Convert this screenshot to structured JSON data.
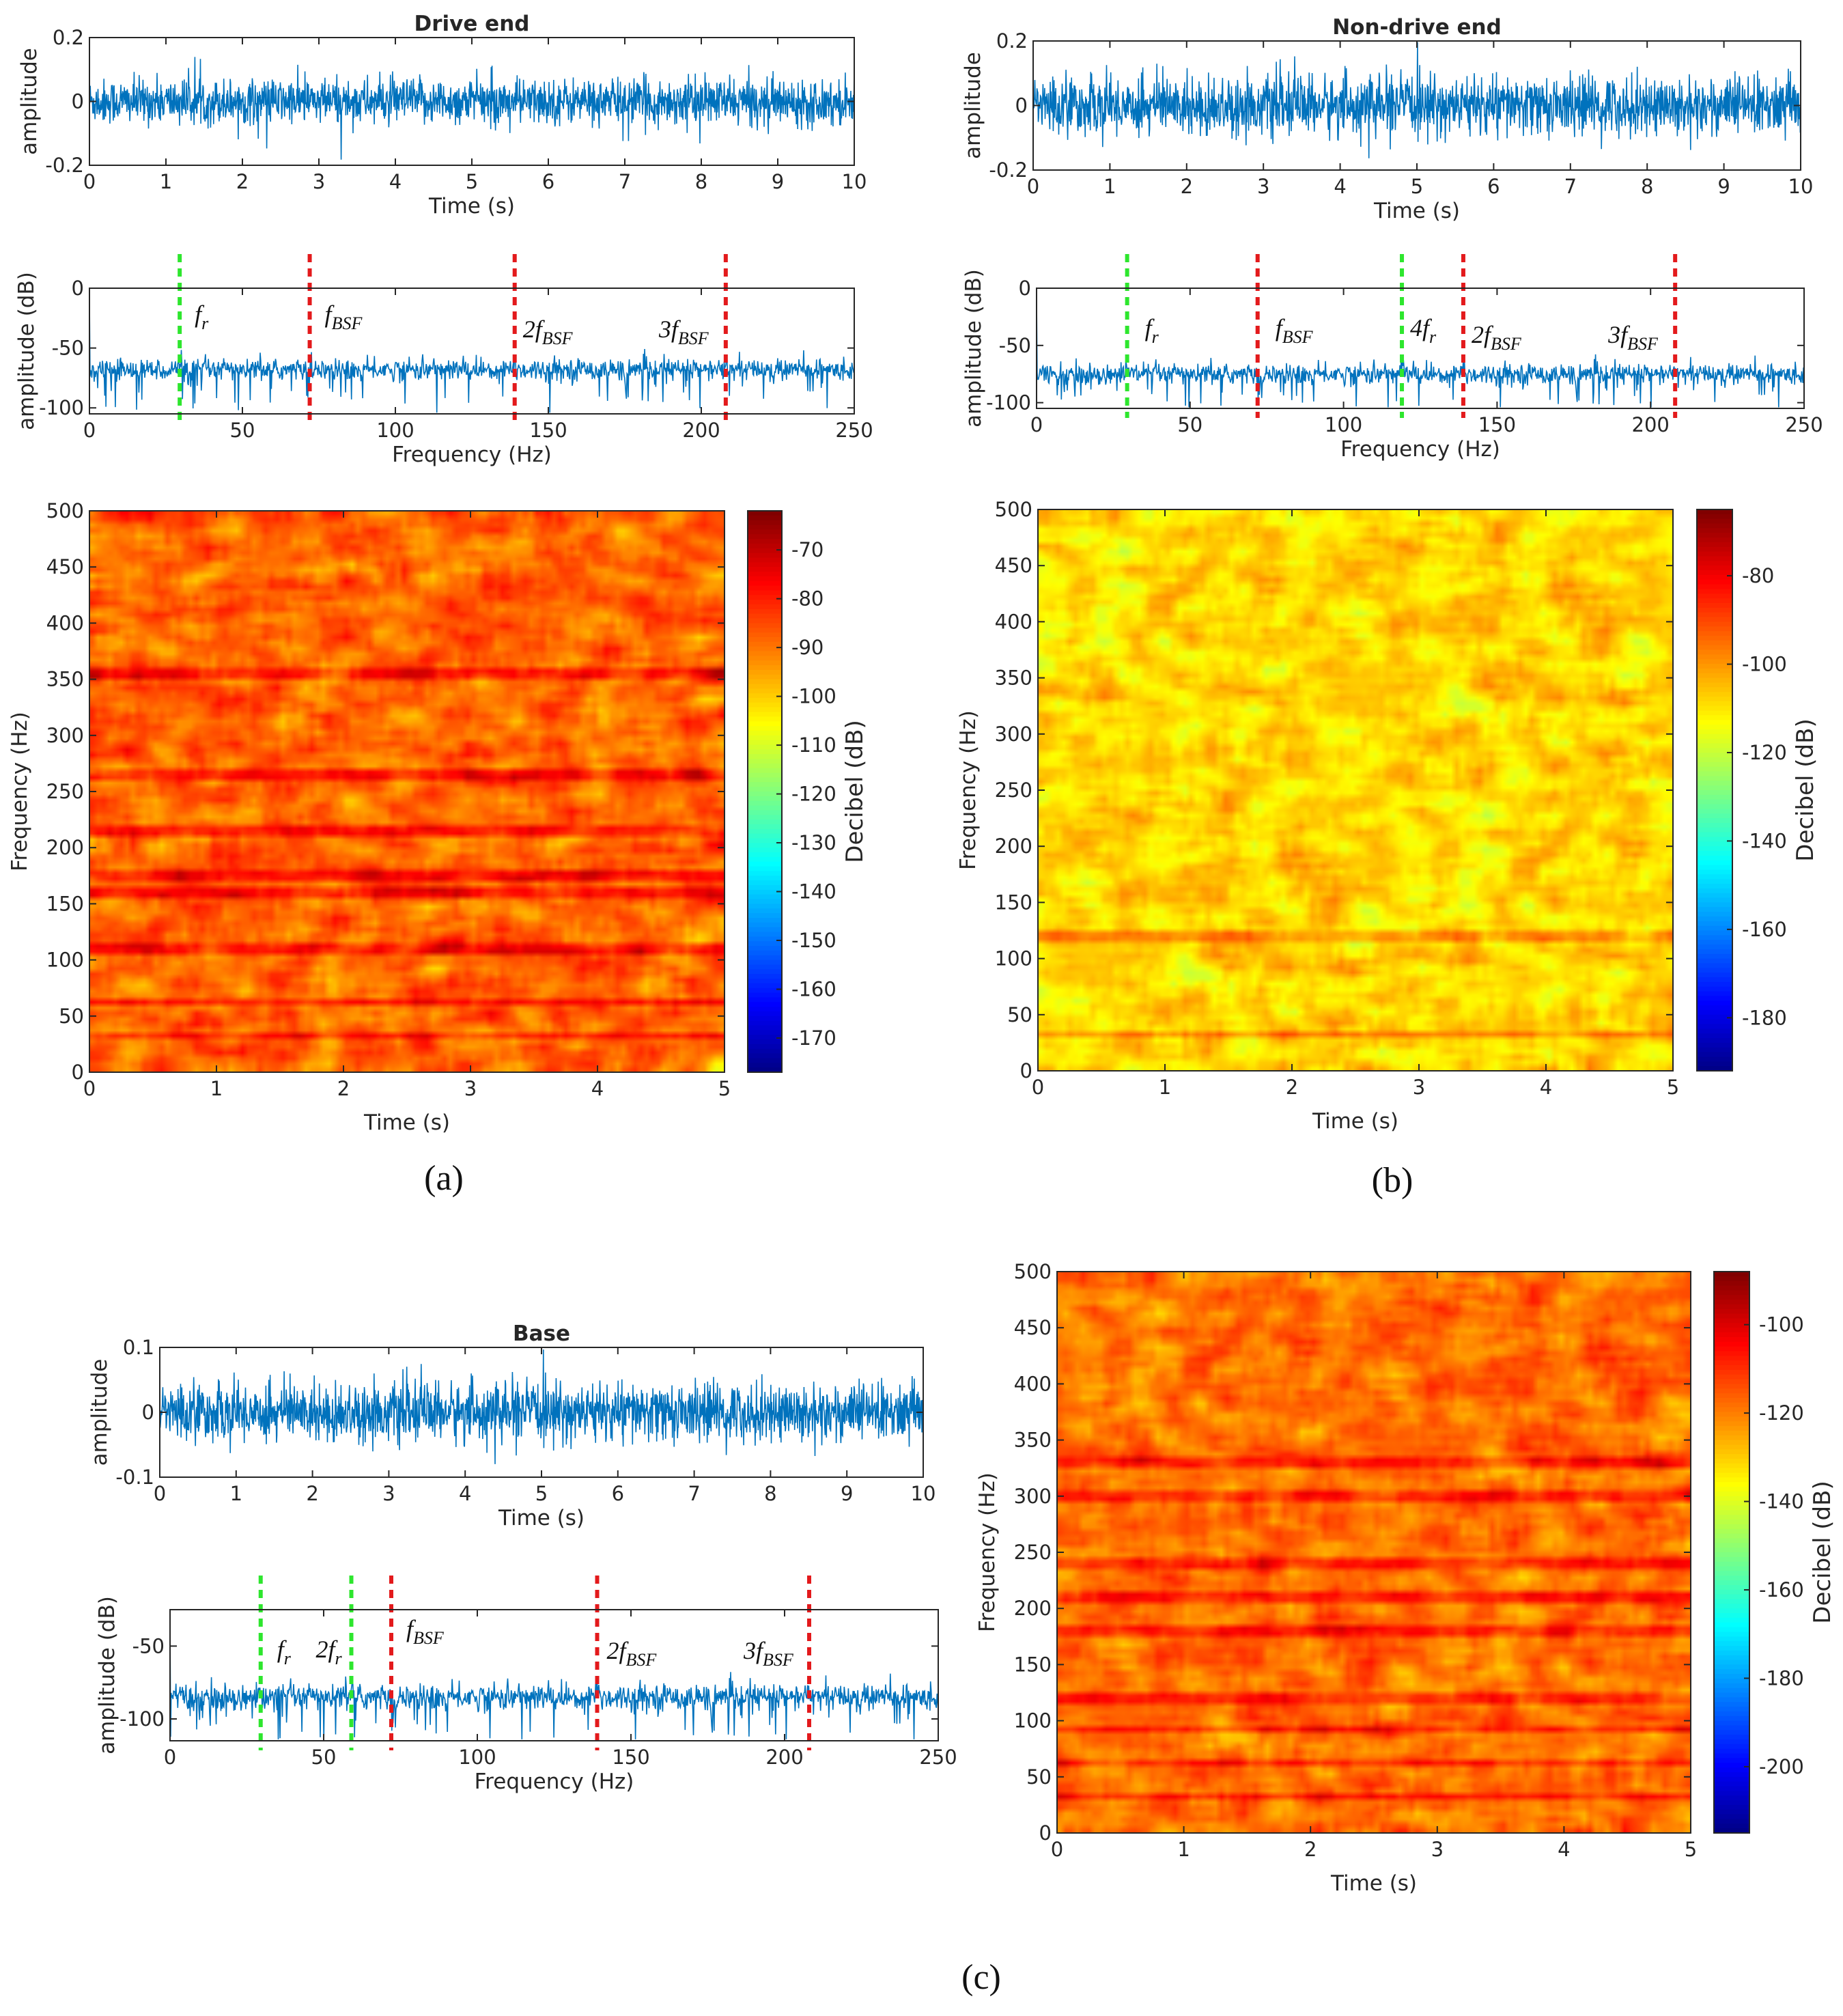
{
  "panels": [
    {
      "id": "a",
      "caption": "(a)",
      "time_plot": {
        "title": "Drive end",
        "xlabel": "Time (s)",
        "ylabel": "amplitude",
        "xlim": [
          0,
          10
        ],
        "ylim": [
          -0.2,
          0.2
        ],
        "xticks": [
          "0",
          "1",
          "2",
          "3",
          "4",
          "5",
          "6",
          "7",
          "8",
          "9",
          "10"
        ],
        "yticks": [
          "0.2",
          "0",
          "-0.2"
        ],
        "signal_rms": 0.035
      },
      "spectrum_plot": {
        "xlabel": "Frequency (Hz)",
        "ylabel": "amplitude (dB)",
        "xlim": [
          0,
          250
        ],
        "ylim": [
          -105,
          0
        ],
        "xticks": [
          "0",
          "50",
          "100",
          "150",
          "200",
          "250"
        ],
        "yticks": [
          "0",
          "-50",
          "-100"
        ],
        "baseline_db": -68,
        "markers": [
          {
            "freq": 29.5,
            "color": "green",
            "label": "f",
            "sub": "r"
          },
          {
            "freq": 72,
            "color": "red",
            "label": "f",
            "sub": "BSF"
          },
          {
            "freq": 139,
            "color": "red",
            "label": "2f",
            "sub": "BSF"
          },
          {
            "freq": 208,
            "color": "red",
            "label": "3f",
            "sub": "BSF"
          }
        ]
      },
      "spectrogram": {
        "xlabel": "Time (s)",
        "ylabel": "Frequency (Hz)",
        "xlim": [
          0,
          5
        ],
        "ylim": [
          0,
          500
        ],
        "xticks": [
          "0",
          "1",
          "2",
          "3",
          "4",
          "5"
        ],
        "yticks": [
          "0",
          "50",
          "100",
          "150",
          "200",
          "250",
          "300",
          "350",
          "400",
          "450",
          "500"
        ],
        "colorbar_label": "Decibel (dB)",
        "colorbar_ticks": [
          "-70",
          "-80",
          "-90",
          "-100",
          "-110",
          "-120",
          "-130",
          "-140",
          "-150",
          "-160",
          "-170"
        ],
        "clim": [
          -177,
          -62
        ],
        "background_db": -88,
        "bright_lines_hz": [
          30,
          60,
          110,
          160,
          175,
          215,
          265,
          355
        ]
      }
    },
    {
      "id": "b",
      "caption": "(b)",
      "time_plot": {
        "title": "Non-drive end",
        "xlabel": "Time (s)",
        "ylabel": "amplitude",
        "xlim": [
          0,
          10
        ],
        "ylim": [
          -0.2,
          0.2
        ],
        "xticks": [
          "0",
          "1",
          "2",
          "3",
          "4",
          "5",
          "6",
          "7",
          "8",
          "9",
          "10"
        ],
        "yticks": [
          "0.2",
          "0",
          "-0.2"
        ],
        "signal_rms": 0.045
      },
      "spectrum_plot": {
        "xlabel": "Frequency (Hz)",
        "ylabel": "amplitude (dB)",
        "xlim": [
          0,
          250
        ],
        "ylim": [
          -105,
          0
        ],
        "xticks": [
          "0",
          "50",
          "100",
          "150",
          "200",
          "250"
        ],
        "yticks": [
          "0",
          "-50",
          "-100"
        ],
        "baseline_db": -75,
        "markers": [
          {
            "freq": 29.5,
            "color": "green",
            "label": "f",
            "sub": "r"
          },
          {
            "freq": 72,
            "color": "red",
            "label": "f",
            "sub": "BSF"
          },
          {
            "freq": 119,
            "color": "green",
            "label": "4f",
            "sub": "r"
          },
          {
            "freq": 139,
            "color": "red",
            "label": "2f",
            "sub": "BSF"
          },
          {
            "freq": 208,
            "color": "red",
            "label": "3f",
            "sub": "BSF"
          }
        ]
      },
      "spectrogram": {
        "xlabel": "Time (s)",
        "ylabel": "Frequency (Hz)",
        "xlim": [
          0,
          5
        ],
        "ylim": [
          0,
          500
        ],
        "xticks": [
          "0",
          "1",
          "2",
          "3",
          "4",
          "5"
        ],
        "yticks": [
          "0",
          "50",
          "100",
          "150",
          "200",
          "250",
          "300",
          "350",
          "400",
          "450",
          "500"
        ],
        "colorbar_label": "Decibel (dB)",
        "colorbar_ticks": [
          "-80",
          "-100",
          "-120",
          "-140",
          "-160",
          "-180"
        ],
        "clim": [
          -192,
          -65
        ],
        "background_db": -108,
        "bright_lines_hz": [
          30,
          120
        ]
      }
    },
    {
      "id": "c",
      "caption": "(c)",
      "time_plot": {
        "title": "Base",
        "xlabel": "Time (s)",
        "ylabel": "amplitude",
        "xlim": [
          0,
          10
        ],
        "ylim": [
          -0.1,
          0.1
        ],
        "xticks": [
          "0",
          "1",
          "2",
          "3",
          "4",
          "5",
          "6",
          "7",
          "8",
          "9",
          "10"
        ],
        "yticks": [
          "0.1",
          "0",
          "-0.1"
        ],
        "signal_rms": 0.022
      },
      "spectrum_plot": {
        "xlabel": "Frequency (Hz)",
        "ylabel": "amplitude (dB)",
        "xlim": [
          0,
          250
        ],
        "ylim": [
          -115,
          -25
        ],
        "xticks": [
          "0",
          "50",
          "100",
          "150",
          "200",
          "250"
        ],
        "yticks": [
          "-50",
          "-100"
        ],
        "baseline_db": -85,
        "markers": [
          {
            "freq": 29.5,
            "color": "green",
            "label": "f",
            "sub": "r"
          },
          {
            "freq": 59,
            "color": "green",
            "label": "2f",
            "sub": "r"
          },
          {
            "freq": 72,
            "color": "red",
            "label": "f",
            "sub": "BSF"
          },
          {
            "freq": 139,
            "color": "red",
            "label": "2f",
            "sub": "BSF"
          },
          {
            "freq": 208,
            "color": "red",
            "label": "3f",
            "sub": "BSF"
          }
        ]
      },
      "spectrogram": {
        "xlabel": "Time (s)",
        "ylabel": "Frequency (Hz)",
        "xlim": [
          0,
          5
        ],
        "ylim": [
          0,
          500
        ],
        "xticks": [
          "0",
          "1",
          "2",
          "3",
          "4",
          "5"
        ],
        "yticks": [
          "0",
          "50",
          "100",
          "150",
          "200",
          "250",
          "300",
          "350",
          "400",
          "450",
          "500"
        ],
        "colorbar_label": "Decibel (dB)",
        "colorbar_ticks": [
          "-100",
          "-120",
          "-140",
          "-160",
          "-180",
          "-200"
        ],
        "clim": [
          -215,
          -88
        ],
        "background_db": -118,
        "bright_lines_hz": [
          30,
          60,
          90,
          120,
          180,
          210,
          240,
          300,
          330
        ]
      }
    }
  ],
  "chart_data": [
    {
      "type": "line",
      "title": "Drive end",
      "xlabel": "Time (s)",
      "ylabel": "amplitude",
      "xlim": [
        0,
        10
      ],
      "ylim": [
        -0.2,
        0.2
      ],
      "description_values": {
        "amplitude_range": [
          -0.15,
          0.15
        ]
      }
    },
    {
      "type": "line",
      "title": "",
      "xlabel": "Frequency (Hz)",
      "ylabel": "amplitude (dB)",
      "xlim": [
        0,
        250
      ],
      "ylim": [
        -105,
        0
      ],
      "markers_hz": {
        "f_r": 29.5,
        "f_BSF": 72,
        "2f_BSF": 139,
        "3f_BSF": 208
      }
    },
    {
      "type": "heatmap",
      "xlabel": "Time (s)",
      "ylabel": "Frequency (Hz)",
      "xlim": [
        0,
        5
      ],
      "ylim": [
        0,
        500
      ],
      "colorbar": "Decibel (dB)",
      "clim": [
        -177,
        -62
      ]
    },
    {
      "type": "line",
      "title": "Non-drive end",
      "xlabel": "Time (s)",
      "ylabel": "amplitude",
      "xlim": [
        0,
        10
      ],
      "ylim": [
        -0.2,
        0.2
      ]
    },
    {
      "type": "line",
      "title": "",
      "xlabel": "Frequency (Hz)",
      "ylabel": "amplitude (dB)",
      "xlim": [
        0,
        250
      ],
      "ylim": [
        -105,
        0
      ],
      "markers_hz": {
        "f_r": 29.5,
        "f_BSF": 72,
        "4f_r": 119,
        "2f_BSF": 139,
        "3f_BSF": 208
      }
    },
    {
      "type": "heatmap",
      "xlabel": "Time (s)",
      "ylabel": "Frequency (Hz)",
      "xlim": [
        0,
        5
      ],
      "ylim": [
        0,
        500
      ],
      "colorbar": "Decibel (dB)",
      "clim": [
        -192,
        -65
      ]
    },
    {
      "type": "line",
      "title": "Base",
      "xlabel": "Time (s)",
      "ylabel": "amplitude",
      "xlim": [
        0,
        10
      ],
      "ylim": [
        -0.1,
        0.1
      ]
    },
    {
      "type": "line",
      "title": "",
      "xlabel": "Frequency (Hz)",
      "ylabel": "amplitude (dB)",
      "xlim": [
        0,
        250
      ],
      "ylim": [
        -115,
        -25
      ],
      "markers_hz": {
        "f_r": 29.5,
        "2f_r": 59,
        "f_BSF": 72,
        "2f_BSF": 139,
        "3f_BSF": 208
      }
    },
    {
      "type": "heatmap",
      "xlabel": "Time (s)",
      "ylabel": "Frequency (Hz)",
      "xlim": [
        0,
        5
      ],
      "ylim": [
        0,
        500
      ],
      "colorbar": "Decibel (dB)",
      "clim": [
        -215,
        -88
      ]
    }
  ]
}
